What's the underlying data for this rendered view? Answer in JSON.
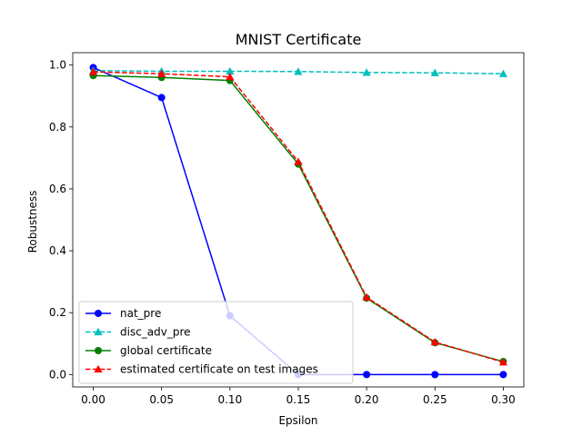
{
  "chart_data": {
    "type": "line",
    "title": "MNIST Certificate",
    "xlabel": "Epsilon",
    "ylabel": "Robustness",
    "x": [
      0.0,
      0.05,
      0.1,
      0.15,
      0.2,
      0.25,
      0.3
    ],
    "x_ticks": [
      "0.00",
      "0.05",
      "0.10",
      "0.15",
      "0.20",
      "0.25",
      "0.30"
    ],
    "y_ticks": [
      "0.0",
      "0.2",
      "0.4",
      "0.6",
      "0.8",
      "1.0"
    ],
    "xlim": [
      -0.015,
      0.315
    ],
    "ylim": [
      -0.04,
      1.04
    ],
    "grid": false,
    "legend_position": "lower-left",
    "series": [
      {
        "name": "nat_pre",
        "color": "#0000ff",
        "linestyle": "solid",
        "marker": "circle",
        "values": [
          0.992,
          0.895,
          0.19,
          0.0,
          0.0,
          0.0,
          0.0
        ]
      },
      {
        "name": "disc_adv_pre",
        "color": "#00bfbf",
        "linestyle": "dashed",
        "marker": "triangle",
        "values": [
          0.982,
          0.98,
          0.98,
          0.979,
          0.976,
          0.975,
          0.972
        ]
      },
      {
        "name": "global certificate",
        "color": "#008000",
        "linestyle": "solid",
        "marker": "circle",
        "values": [
          0.966,
          0.96,
          0.95,
          0.68,
          0.247,
          0.103,
          0.042
        ]
      },
      {
        "name": "estimated certificate on test images",
        "color": "#ff0000",
        "linestyle": "dashed",
        "marker": "triangle",
        "values": [
          0.978,
          0.972,
          0.962,
          0.688,
          0.25,
          0.105,
          0.04
        ]
      }
    ]
  }
}
